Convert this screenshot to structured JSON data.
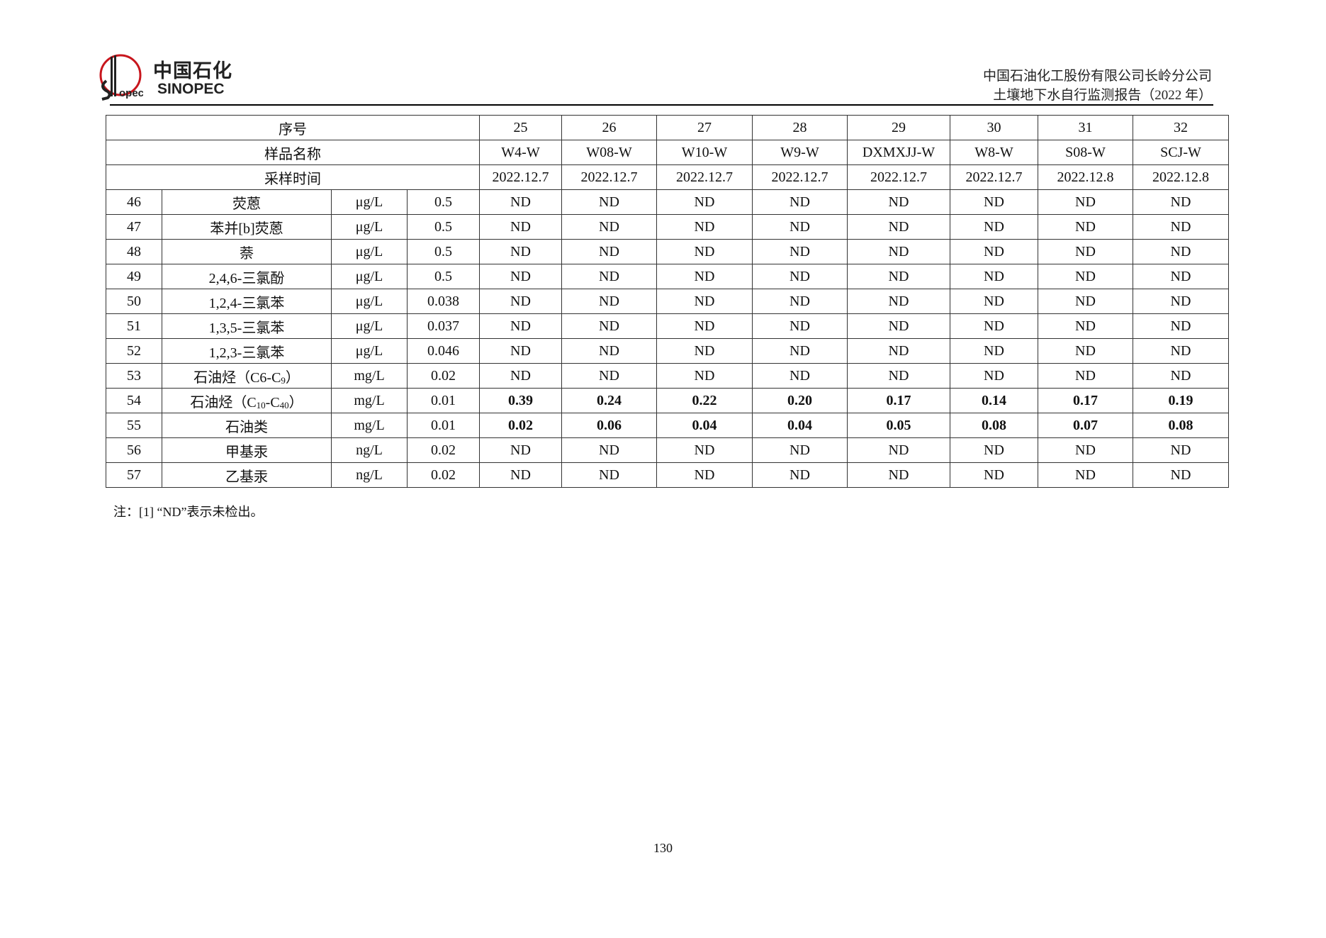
{
  "header": {
    "logo_cn": "中国石化",
    "logo_en": "SINOPEC",
    "company": "中国石油化工股份有限公司长岭分公司",
    "report": "土壤地下水自行监测报告（2022 年）"
  },
  "table": {
    "row_labels": {
      "index": "序号",
      "sample_name": "样品名称",
      "sample_time": "采样时间"
    },
    "indices": [
      "25",
      "26",
      "27",
      "28",
      "29",
      "30",
      "31",
      "32"
    ],
    "sample_names": [
      "W4-W",
      "W08-W",
      "W10-W",
      "W9-W",
      "DXMXJJ-W",
      "W8-W",
      "S08-W",
      "SCJ-W"
    ],
    "sample_times": [
      "2022.12.7",
      "2022.12.7",
      "2022.12.7",
      "2022.12.7",
      "2022.12.7",
      "2022.12.7",
      "2022.12.8",
      "2022.12.8"
    ],
    "rows": [
      {
        "no": "46",
        "name": [
          {
            "t": "荧蒽"
          }
        ],
        "unit": "μg/L",
        "limit": "0.5",
        "values": [
          "ND",
          "ND",
          "ND",
          "ND",
          "ND",
          "ND",
          "ND",
          "ND"
        ],
        "bold": false
      },
      {
        "no": "47",
        "name": [
          {
            "t": "苯并[b]荧蒽"
          }
        ],
        "unit": "μg/L",
        "limit": "0.5",
        "values": [
          "ND",
          "ND",
          "ND",
          "ND",
          "ND",
          "ND",
          "ND",
          "ND"
        ],
        "bold": false
      },
      {
        "no": "48",
        "name": [
          {
            "t": "萘"
          }
        ],
        "unit": "μg/L",
        "limit": "0.5",
        "values": [
          "ND",
          "ND",
          "ND",
          "ND",
          "ND",
          "ND",
          "ND",
          "ND"
        ],
        "bold": false
      },
      {
        "no": "49",
        "name": [
          {
            "t": "2,4,6-三氯酚"
          }
        ],
        "unit": "μg/L",
        "limit": "0.5",
        "values": [
          "ND",
          "ND",
          "ND",
          "ND",
          "ND",
          "ND",
          "ND",
          "ND"
        ],
        "bold": false
      },
      {
        "no": "50",
        "name": [
          {
            "t": "1,2,4-三氯苯"
          }
        ],
        "unit": "μg/L",
        "limit": "0.038",
        "values": [
          "ND",
          "ND",
          "ND",
          "ND",
          "ND",
          "ND",
          "ND",
          "ND"
        ],
        "bold": false
      },
      {
        "no": "51",
        "name": [
          {
            "t": "1,3,5-三氯苯"
          }
        ],
        "unit": "μg/L",
        "limit": "0.037",
        "values": [
          "ND",
          "ND",
          "ND",
          "ND",
          "ND",
          "ND",
          "ND",
          "ND"
        ],
        "bold": false
      },
      {
        "no": "52",
        "name": [
          {
            "t": "1,2,3-三氯苯"
          }
        ],
        "unit": "μg/L",
        "limit": "0.046",
        "values": [
          "ND",
          "ND",
          "ND",
          "ND",
          "ND",
          "ND",
          "ND",
          "ND"
        ],
        "bold": false
      },
      {
        "no": "53",
        "name": [
          {
            "t": "石油烃（C6-C"
          },
          {
            "t": "9",
            "sub": true
          },
          {
            "t": "）"
          }
        ],
        "unit": "mg/L",
        "limit": "0.02",
        "values": [
          "ND",
          "ND",
          "ND",
          "ND",
          "ND",
          "ND",
          "ND",
          "ND"
        ],
        "bold": false
      },
      {
        "no": "54",
        "name": [
          {
            "t": "石油烃（C"
          },
          {
            "t": "10",
            "sub": true
          },
          {
            "t": "-C"
          },
          {
            "t": "40",
            "sub": true
          },
          {
            "t": "）"
          }
        ],
        "unit": "mg/L",
        "limit": "0.01",
        "values": [
          "0.39",
          "0.24",
          "0.22",
          "0.20",
          "0.17",
          "0.14",
          "0.17",
          "0.19"
        ],
        "bold": true
      },
      {
        "no": "55",
        "name": [
          {
            "t": "石油类"
          }
        ],
        "unit": "mg/L",
        "limit": "0.01",
        "values": [
          "0.02",
          "0.06",
          "0.04",
          "0.04",
          "0.05",
          "0.08",
          "0.07",
          "0.08"
        ],
        "bold": true
      },
      {
        "no": "56",
        "name": [
          {
            "t": "甲基汞"
          }
        ],
        "unit": "ng/L",
        "limit": "0.02",
        "values": [
          "ND",
          "ND",
          "ND",
          "ND",
          "ND",
          "ND",
          "ND",
          "ND"
        ],
        "bold": false
      },
      {
        "no": "57",
        "name": [
          {
            "t": "乙基汞"
          }
        ],
        "unit": "ng/L",
        "limit": "0.02",
        "values": [
          "ND",
          "ND",
          "ND",
          "ND",
          "ND",
          "ND",
          "ND",
          "ND"
        ],
        "bold": false
      }
    ]
  },
  "note": "注：[1] “ND”表示未检出。",
  "page_number": "130",
  "colors": {
    "logo_red": "#c8161d",
    "text": "#111111"
  }
}
